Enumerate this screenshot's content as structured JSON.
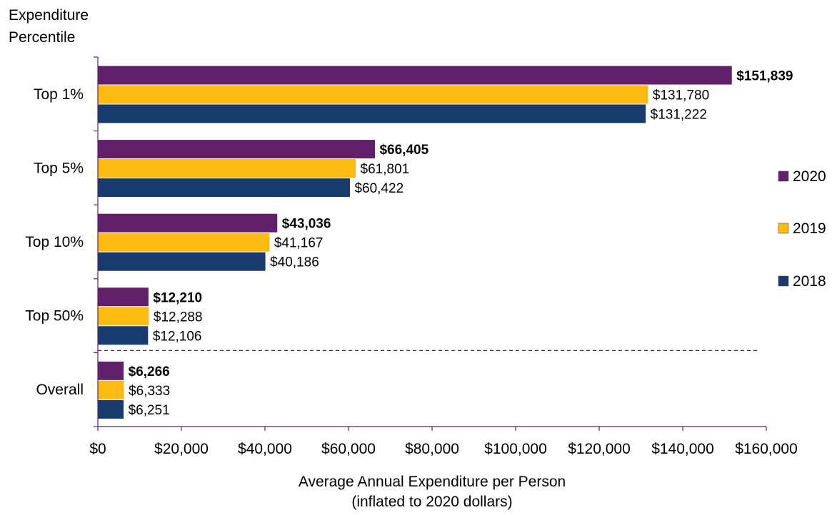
{
  "chart_data": {
    "type": "bar",
    "orientation": "horizontal",
    "ylabel": "Expenditure Percentile",
    "xlabel_line1": "Average Annual Expenditure per Person",
    "xlabel_line2": "(inflated to 2020 dollars)",
    "categories": [
      "Top 1%",
      "Top 5%",
      "Top 10%",
      "Top 50%",
      "Overall"
    ],
    "series": [
      {
        "name": "2020",
        "color": "#612069",
        "values": [
          151839,
          66405,
          43036,
          12210,
          6266
        ],
        "labels": [
          "$151,839",
          "$66,405",
          "$43,036",
          "$12,210",
          "$6,266"
        ],
        "bold_labels": true
      },
      {
        "name": "2019",
        "color": "#FDBA12",
        "values": [
          131780,
          61801,
          41167,
          12288,
          6333
        ],
        "labels": [
          "$131,780",
          "$61,801",
          "$41,167",
          "$12,288",
          "$6,333"
        ],
        "bold_labels": false
      },
      {
        "name": "2018",
        "color": "#173B6D",
        "values": [
          131222,
          60422,
          40186,
          12106,
          6251
        ],
        "labels": [
          "$131,222",
          "$60,422",
          "$40,186",
          "$12,106",
          "$6,251"
        ],
        "bold_labels": false
      }
    ],
    "xlim": [
      0,
      160000
    ],
    "xticks": [
      0,
      20000,
      40000,
      60000,
      80000,
      100000,
      120000,
      140000,
      160000
    ],
    "xtick_labels": [
      "$0",
      "$20,000",
      "$40,000",
      "$60,000",
      "$80,000",
      "$100,000",
      "$120,000",
      "$140,000",
      "$160,000"
    ],
    "legend_position": "right",
    "separator_before_category": "Overall",
    "grid": false
  }
}
